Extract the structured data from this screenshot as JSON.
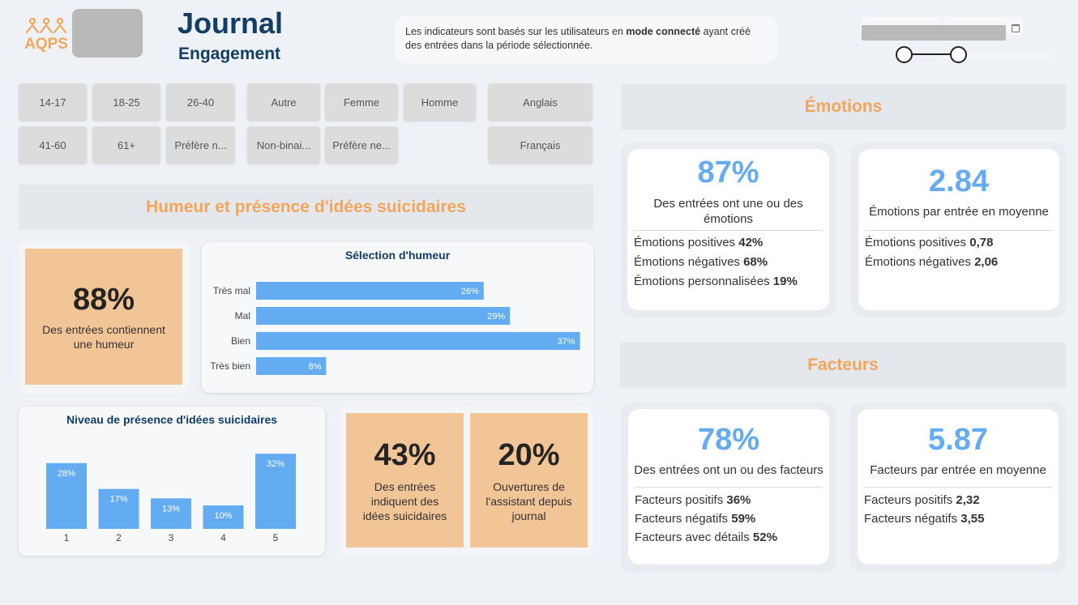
{
  "header": {
    "logo_text": "AQPS",
    "title": "Journal",
    "subtitle": "Engagement",
    "info_pre": "Les indicateurs sont basés sur les utilisateurs en ",
    "info_bold": "mode connecté",
    "info_post": " ayant créé des entrées dans la période sélectionnée."
  },
  "filters": {
    "age": [
      "14-17",
      "18-25",
      "26-40",
      "41-60",
      "61+",
      "Préfère n..."
    ],
    "gender": [
      "Autre",
      "Femme",
      "Homme",
      "Non-binai...",
      "Préfère ne..."
    ],
    "language": [
      "Anglais",
      "Français"
    ]
  },
  "mood_section": {
    "title": "Humeur et présence d'idées suicidaires",
    "mood_kpi": {
      "value": "88%",
      "label": "Des entrées contiennent une humeur"
    },
    "suicidal_kpi": {
      "value": "43%",
      "label": "Des entrées indiquent des idées suicidaires"
    },
    "assistant_kpi": {
      "value": "20%",
      "label": "Ouvertures de l'assistant depuis journal"
    }
  },
  "emotions": {
    "title": "Émotions",
    "pct_value": "87%",
    "pct_label": "Des entrées ont une ou des émotions",
    "pct_lines": [
      {
        "label": "Émotions positives ",
        "value": "42%"
      },
      {
        "label": "Émotions négatives ",
        "value": "68%"
      },
      {
        "label": "Émotions personnalisées ",
        "value": "19%"
      }
    ],
    "avg_value": "2.84",
    "avg_label": "Émotions par entrée en moyenne",
    "avg_lines": [
      {
        "label": "Émotions positives ",
        "value": "0,78"
      },
      {
        "label": "Émotions négatives ",
        "value": "2,06"
      }
    ]
  },
  "factors": {
    "title": "Facteurs",
    "pct_value": "78%",
    "pct_label": "Des entrées ont un ou des facteurs",
    "pct_lines": [
      {
        "label": "Facteurs positifs ",
        "value": "36%"
      },
      {
        "label": "Facteurs négatifs ",
        "value": "59%"
      },
      {
        "label": "Facteurs avec détails ",
        "value": "52%"
      }
    ],
    "avg_value": "5.87",
    "avg_label": "Facteurs par entrée en moyenne",
    "avg_lines": [
      {
        "label": "Facteurs positifs ",
        "value": "2,32"
      },
      {
        "label": "Facteurs négatifs ",
        "value": "3,55"
      }
    ]
  },
  "chart_data": [
    {
      "type": "bar",
      "orientation": "horizontal",
      "title": "Sélection d'humeur",
      "categories": [
        "Très mal",
        "Mal",
        "Bien",
        "Très bien"
      ],
      "values": [
        26,
        29,
        37,
        8
      ],
      "labels": [
        "26%",
        "29%",
        "37%",
        "8%"
      ],
      "color": "#63acf2",
      "grid": false
    },
    {
      "type": "bar",
      "orientation": "vertical",
      "title": "Niveau de présence d'idées suicidaires",
      "categories": [
        "1",
        "2",
        "3",
        "4",
        "5"
      ],
      "values": [
        28,
        17,
        13,
        10,
        32
      ],
      "labels": [
        "28%",
        "17%",
        "13%",
        "10%",
        "32%"
      ],
      "color": "#63acf2",
      "grid": false
    }
  ]
}
